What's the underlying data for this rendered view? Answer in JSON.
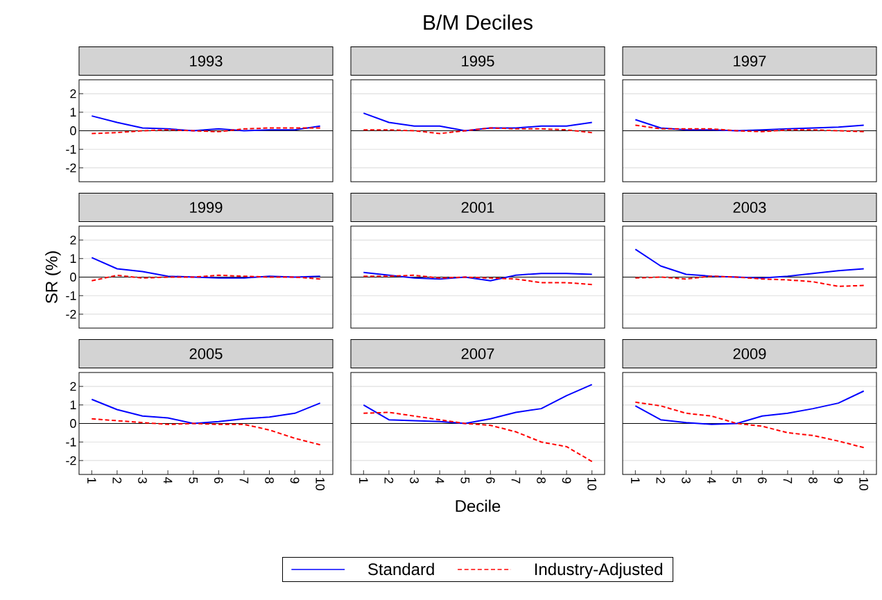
{
  "chart_data": [
    {
      "type": "line",
      "title": "1993",
      "x": [
        1,
        2,
        3,
        4,
        5,
        6,
        7,
        8,
        9,
        10
      ],
      "xlim": [
        0.5,
        10.5
      ],
      "ylim": [
        -2.75,
        2.75
      ],
      "yticks": [
        -2,
        -1,
        0,
        1,
        2
      ],
      "grid": "y",
      "tick_labels": "y",
      "ref_lines": [
        {
          "axis": "y",
          "value": 0,
          "color": "#000000"
        }
      ],
      "series": [
        {
          "color": "#0000ff",
          "line_style": "solid",
          "values": [
            0.8,
            0.45,
            0.15,
            0.1,
            0,
            0.1,
            0,
            0.05,
            0.05,
            0.25
          ]
        },
        {
          "color": "#ff0000",
          "line_style": "dashed",
          "values": [
            -0.15,
            -0.1,
            0,
            0.05,
            0,
            -0.05,
            0.1,
            0.15,
            0.15,
            0.15
          ]
        }
      ]
    },
    {
      "type": "line",
      "title": "1995",
      "annotations": [
        "B/M Deciles"
      ],
      "x": [
        1,
        2,
        3,
        4,
        5,
        6,
        7,
        8,
        9,
        10
      ],
      "xlim": [
        0.5,
        10.5
      ],
      "ylim": [
        -2.75,
        2.75
      ],
      "yticks": [
        -2,
        -1,
        0,
        1,
        2
      ],
      "grid": "y",
      "tick_labels": false,
      "ref_lines": [
        {
          "axis": "y",
          "value": 0,
          "color": "#000000"
        }
      ],
      "series": [
        {
          "color": "#0000ff",
          "line_style": "solid",
          "values": [
            0.95,
            0.45,
            0.25,
            0.25,
            0,
            0.15,
            0.15,
            0.25,
            0.25,
            0.45
          ]
        },
        {
          "color": "#ff0000",
          "line_style": "dashed",
          "values": [
            0.05,
            0.05,
            0,
            -0.15,
            0,
            0.15,
            0.1,
            0.1,
            0.05,
            -0.1
          ]
        }
      ]
    },
    {
      "type": "line",
      "title": "1997",
      "x": [
        1,
        2,
        3,
        4,
        5,
        6,
        7,
        8,
        9,
        10
      ],
      "xlim": [
        0.5,
        10.5
      ],
      "ylim": [
        -2.75,
        2.75
      ],
      "yticks": [
        -2,
        -1,
        0,
        1,
        2
      ],
      "grid": "y",
      "tick_labels": false,
      "ref_lines": [
        {
          "axis": "y",
          "value": 0,
          "color": "#000000"
        }
      ],
      "series": [
        {
          "color": "#0000ff",
          "line_style": "solid",
          "values": [
            0.6,
            0.15,
            0.05,
            0.05,
            0,
            0.05,
            0.1,
            0.15,
            0.2,
            0.3
          ]
        },
        {
          "color": "#ff0000",
          "line_style": "dashed",
          "values": [
            0.3,
            0.1,
            0.1,
            0.1,
            0,
            -0.05,
            0.05,
            0.05,
            0,
            -0.05
          ]
        }
      ]
    },
    {
      "type": "line",
      "title": "1999",
      "ylabel": "SR (%)",
      "x": [
        1,
        2,
        3,
        4,
        5,
        6,
        7,
        8,
        9,
        10
      ],
      "xlim": [
        0.5,
        10.5
      ],
      "ylim": [
        -2.75,
        2.75
      ],
      "yticks": [
        -2,
        -1,
        0,
        1,
        2
      ],
      "grid": "y",
      "tick_labels": "y",
      "ref_lines": [
        {
          "axis": "y",
          "value": 0,
          "color": "#000000"
        }
      ],
      "series": [
        {
          "color": "#0000ff",
          "line_style": "solid",
          "values": [
            1.05,
            0.45,
            0.3,
            0.05,
            0,
            -0.05,
            -0.05,
            0.05,
            0,
            0.05
          ]
        },
        {
          "color": "#ff0000",
          "line_style": "dashed",
          "values": [
            -0.2,
            0.1,
            -0.05,
            0,
            0,
            0.1,
            0.05,
            0,
            0,
            -0.1
          ]
        }
      ]
    },
    {
      "type": "line",
      "title": "2001",
      "x": [
        1,
        2,
        3,
        4,
        5,
        6,
        7,
        8,
        9,
        10
      ],
      "xlim": [
        0.5,
        10.5
      ],
      "ylim": [
        -2.75,
        2.75
      ],
      "yticks": [
        -2,
        -1,
        0,
        1,
        2
      ],
      "grid": "y",
      "tick_labels": false,
      "ref_lines": [
        {
          "axis": "y",
          "value": 0,
          "color": "#000000"
        }
      ],
      "series": [
        {
          "color": "#0000ff",
          "line_style": "solid",
          "values": [
            0.25,
            0.1,
            -0.05,
            -0.1,
            0,
            -0.2,
            0.1,
            0.2,
            0.2,
            0.15
          ]
        },
        {
          "color": "#ff0000",
          "line_style": "dashed",
          "values": [
            0.05,
            0.05,
            0.1,
            -0.05,
            0,
            -0.05,
            -0.1,
            -0.3,
            -0.3,
            -0.4
          ]
        }
      ]
    },
    {
      "type": "line",
      "title": "2003",
      "x": [
        1,
        2,
        3,
        4,
        5,
        6,
        7,
        8,
        9,
        10
      ],
      "xlim": [
        0.5,
        10.5
      ],
      "ylim": [
        -2.75,
        2.75
      ],
      "yticks": [
        -2,
        -1,
        0,
        1,
        2
      ],
      "grid": "y",
      "tick_labels": false,
      "ref_lines": [
        {
          "axis": "y",
          "value": 0,
          "color": "#000000"
        }
      ],
      "series": [
        {
          "color": "#0000ff",
          "line_style": "solid",
          "values": [
            1.5,
            0.6,
            0.15,
            0.05,
            0,
            -0.05,
            0.05,
            0.2,
            0.35,
            0.45
          ]
        },
        {
          "color": "#ff0000",
          "line_style": "dashed",
          "values": [
            -0.05,
            0,
            -0.1,
            0.05,
            0,
            -0.1,
            -0.15,
            -0.25,
            -0.5,
            -0.45
          ]
        }
      ]
    },
    {
      "type": "line",
      "title": "2005",
      "x": [
        1,
        2,
        3,
        4,
        5,
        6,
        7,
        8,
        9,
        10
      ],
      "xlim": [
        0.5,
        10.5
      ],
      "xticks": [
        1,
        2,
        3,
        4,
        5,
        6,
        7,
        8,
        9,
        10
      ],
      "ylim": [
        -2.75,
        2.75
      ],
      "yticks": [
        -2,
        -1,
        0,
        1,
        2
      ],
      "grid": "y",
      "ref_lines": [
        {
          "axis": "y",
          "value": 0,
          "color": "#000000"
        }
      ],
      "series": [
        {
          "color": "#0000ff",
          "line_style": "solid",
          "values": [
            1.3,
            0.75,
            0.4,
            0.3,
            0,
            0.1,
            0.25,
            0.35,
            0.55,
            1.1
          ]
        },
        {
          "color": "#ff0000",
          "line_style": "dashed",
          "values": [
            0.25,
            0.15,
            0.05,
            -0.05,
            0,
            -0.05,
            -0.05,
            -0.35,
            -0.8,
            -1.15
          ]
        }
      ]
    },
    {
      "type": "line",
      "title": "2007",
      "xlabel": "Decile",
      "legend": "bottom",
      "x": [
        1,
        2,
        3,
        4,
        5,
        6,
        7,
        8,
        9,
        10
      ],
      "xlim": [
        0.5,
        10.5
      ],
      "xticks": [
        1,
        2,
        3,
        4,
        5,
        6,
        7,
        8,
        9,
        10
      ],
      "ylim": [
        -2.75,
        2.75
      ],
      "yticks": [
        -2,
        -1,
        0,
        1,
        2
      ],
      "grid": "y",
      "tick_labels": "x",
      "ref_lines": [
        {
          "axis": "y",
          "value": 0,
          "color": "#000000"
        }
      ],
      "series": [
        {
          "name": "Standard",
          "color": "#0000ff",
          "line_style": "solid",
          "values": [
            1.0,
            0.2,
            0.15,
            0.1,
            0,
            0.25,
            0.6,
            0.8,
            1.5,
            2.1
          ]
        },
        {
          "name": "Industry-Adjusted",
          "color": "#ff0000",
          "line_style": "dashed",
          "values": [
            0.55,
            0.6,
            0.4,
            0.2,
            0,
            -0.1,
            -0.45,
            -1.0,
            -1.25,
            -2.05
          ]
        }
      ]
    },
    {
      "type": "line",
      "title": "2009",
      "x": [
        1,
        2,
        3,
        4,
        5,
        6,
        7,
        8,
        9,
        10
      ],
      "xlim": [
        0.5,
        10.5
      ],
      "xticks": [
        1,
        2,
        3,
        4,
        5,
        6,
        7,
        8,
        9,
        10
      ],
      "ylim": [
        -2.75,
        2.75
      ],
      "yticks": [
        -2,
        -1,
        0,
        1,
        2
      ],
      "grid": "y",
      "tick_labels": "x",
      "ref_lines": [
        {
          "axis": "y",
          "value": 0,
          "color": "#000000"
        }
      ],
      "series": [
        {
          "color": "#0000ff",
          "line_style": "solid",
          "values": [
            0.95,
            0.2,
            0.05,
            -0.05,
            0,
            0.4,
            0.55,
            0.8,
            1.1,
            1.75
          ]
        },
        {
          "color": "#ff0000",
          "line_style": "dashed",
          "values": [
            1.15,
            0.95,
            0.55,
            0.4,
            0,
            -0.15,
            -0.5,
            -0.65,
            -0.95,
            -1.3
          ]
        }
      ]
    }
  ]
}
